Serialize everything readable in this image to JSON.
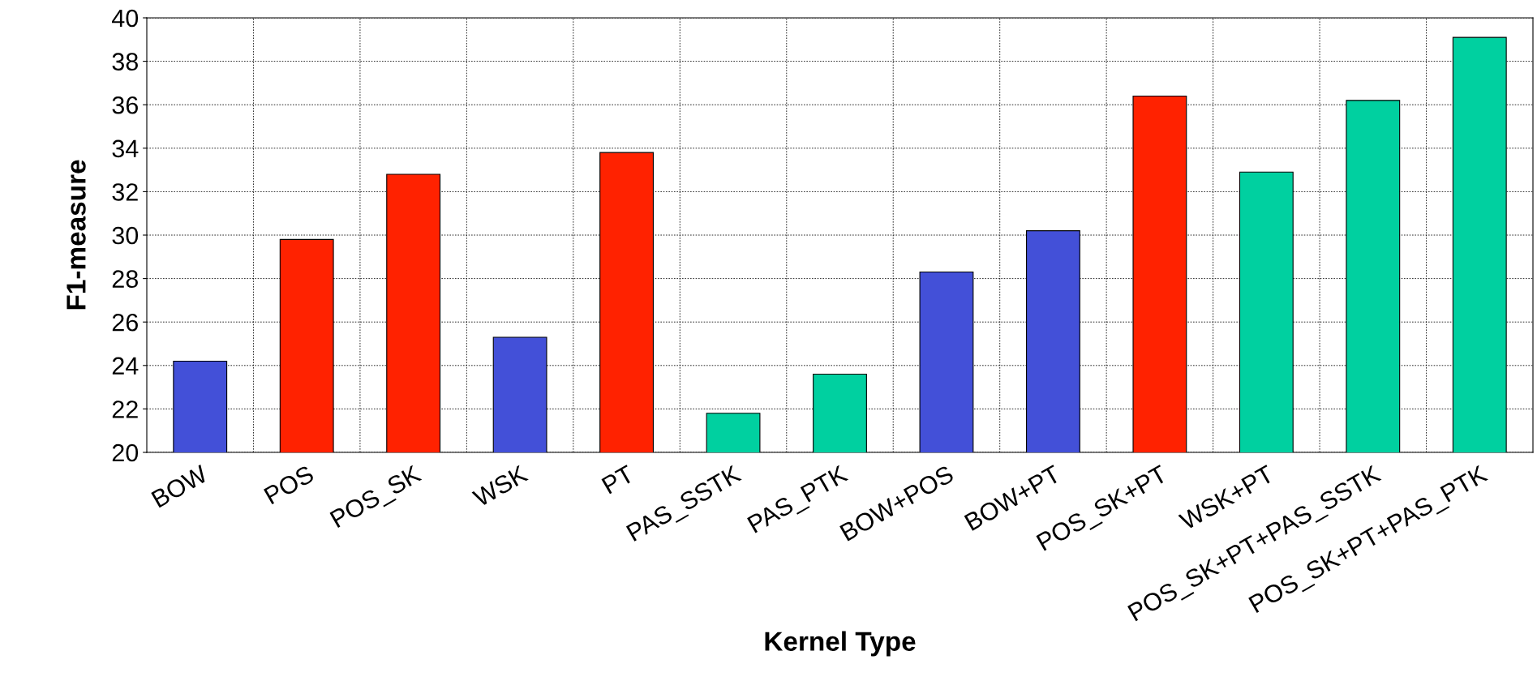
{
  "chart_data": {
    "type": "bar",
    "xlabel": "Kernel Type",
    "ylabel": "F1-measure",
    "categories": [
      "BOW",
      "POS",
      "POS_SK",
      "WSK",
      "PT",
      "PAS_SSTK",
      "PAS_PTK",
      "BOW+POS",
      "BOW+PT",
      "POS_SK+PT",
      "WSK+PT",
      "POS_SK+PT+PAS_SSTK",
      "POS_SK+PT+PAS_PTK"
    ],
    "values": [
      24.2,
      29.8,
      32.8,
      25.3,
      33.8,
      21.8,
      23.6,
      28.3,
      30.2,
      36.4,
      32.9,
      36.2,
      39.1
    ],
    "colors": [
      "#4350d8",
      "#ff2200",
      "#ff2200",
      "#4350d8",
      "#ff2200",
      "#00d0a0",
      "#00d0a0",
      "#4350d8",
      "#4350d8",
      "#ff2200",
      "#00d0a0",
      "#00d0a0",
      "#00d0a0"
    ],
    "ylim": [
      20,
      40
    ],
    "yticks": [
      20,
      22,
      24,
      26,
      28,
      30,
      32,
      34,
      36,
      38,
      40
    ],
    "grid": true,
    "legend": false
  }
}
